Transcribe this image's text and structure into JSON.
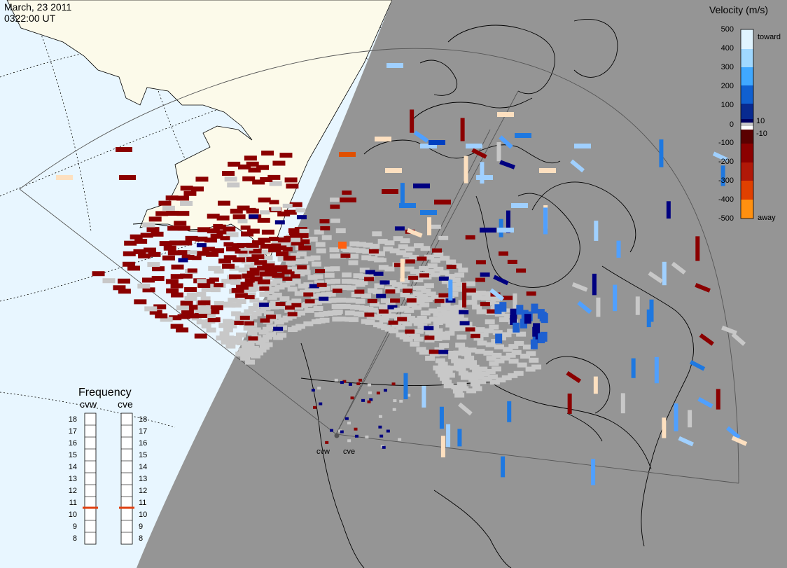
{
  "header": {
    "date": "March, 23 2011",
    "time": "0322:00 UT"
  },
  "colorbar": {
    "title": "Velocity (m/s)",
    "ticks": [
      "500",
      "400",
      "300",
      "200",
      "100",
      "10",
      "0",
      "-10",
      "-100",
      "-200",
      "-300",
      "-400",
      "-500"
    ],
    "toward_label": "toward",
    "away_label": "away",
    "colors": [
      "#fde0c0",
      "#ffb060",
      "#ff8000",
      "#e05000",
      "#c02000",
      "#8b0000",
      "#000080",
      "#0040c0",
      "#1e78e0",
      "#50a0ff",
      "#a0d0ff",
      "#e0f4ff"
    ]
  },
  "frequency_panel": {
    "title": "Frequency",
    "radars": [
      {
        "name": "cvw",
        "freq": 11
      },
      {
        "name": "cve",
        "freq": 11
      }
    ],
    "levels": [
      "18",
      "17",
      "16",
      "15",
      "14",
      "13",
      "12",
      "11",
      "10",
      "9",
      "8"
    ]
  },
  "radar_site_labels": [
    "cvw",
    "cve"
  ],
  "map_colors": {
    "ocean": "#e8f6ff",
    "land": "#fcfaea",
    "night": "#959595",
    "gray_scatter": "#c8c8c8"
  }
}
